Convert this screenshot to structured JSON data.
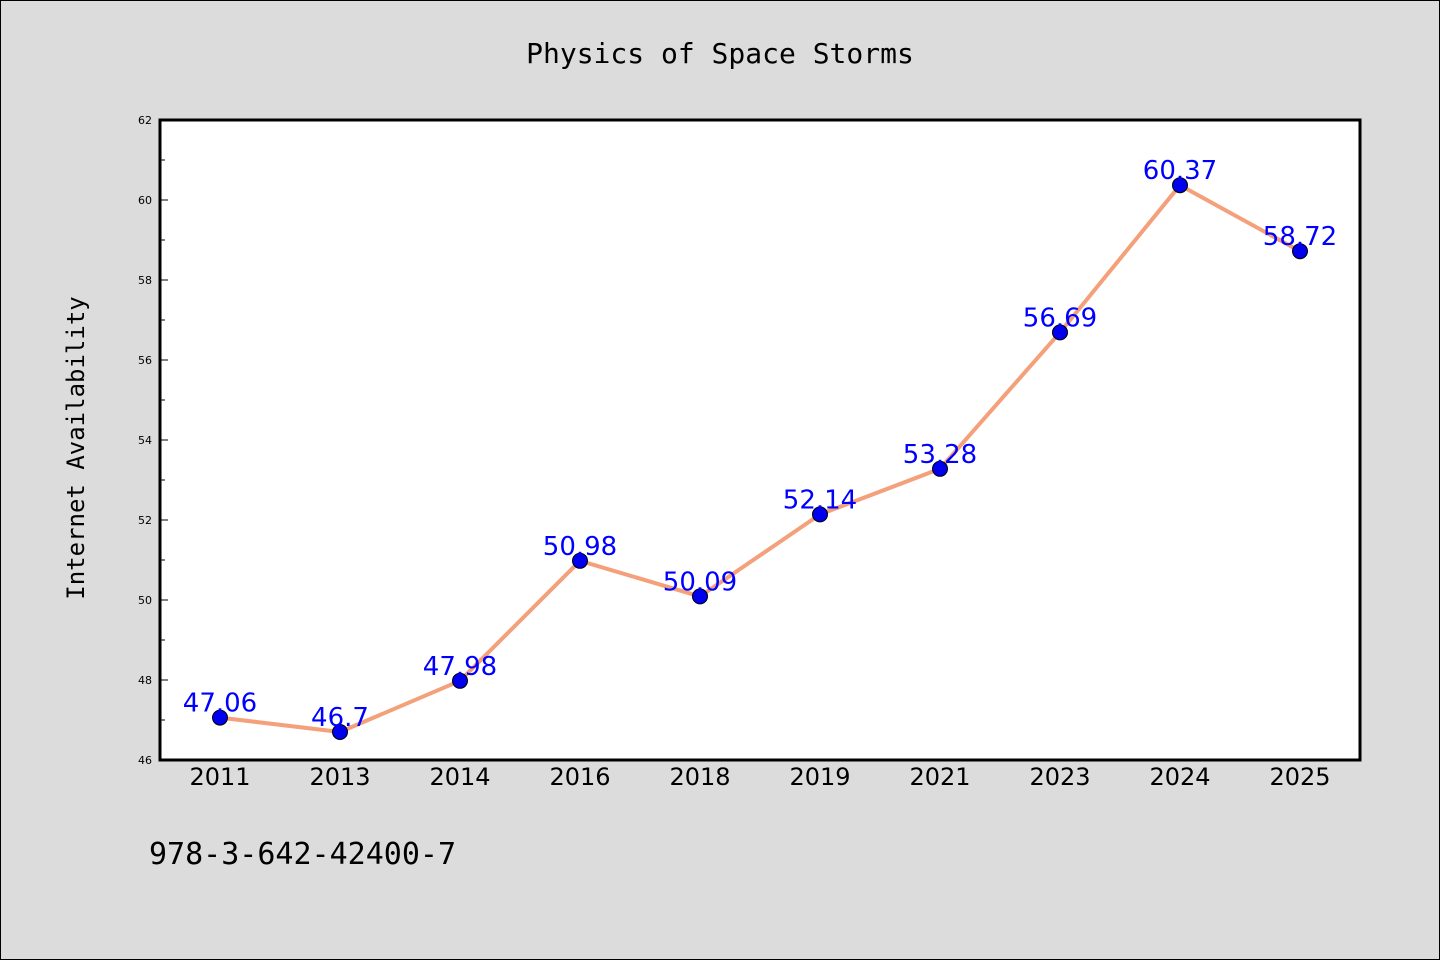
{
  "chart_data": {
    "type": "line",
    "title": "Physics of Space Storms",
    "xlabel": "",
    "ylabel": "Internet Availability",
    "categories": [
      "2011",
      "2013",
      "2014",
      "2016",
      "2018",
      "2019",
      "2021",
      "2023",
      "2024",
      "2025"
    ],
    "series": [
      {
        "values": [
          47.06,
          46.7,
          47.98,
          50.98,
          50.09,
          52.14,
          53.28,
          56.69,
          60.37,
          58.72
        ],
        "data_labels": [
          "47.06",
          "46.7",
          "47.98",
          "50.98",
          "50.09",
          "52.14",
          "53.28",
          "56.69",
          "60.37",
          "58.72"
        ],
        "line_color": "#f4a07a",
        "marker_color": "#0000ee"
      }
    ],
    "ylim": [
      46,
      62
    ],
    "yticks": [
      46,
      48,
      50,
      52,
      54,
      56,
      58,
      60,
      62
    ],
    "ytick_labels": [
      "46",
      "48",
      "50",
      "52",
      "54",
      "56",
      "58",
      "60",
      "62"
    ],
    "grid": false,
    "legend": "none"
  },
  "footer_text": "978-3-642-42400-7",
  "colors": {
    "background": "#dcdcdc",
    "plot_background": "#ffffff",
    "label_text": "#0000ff"
  }
}
